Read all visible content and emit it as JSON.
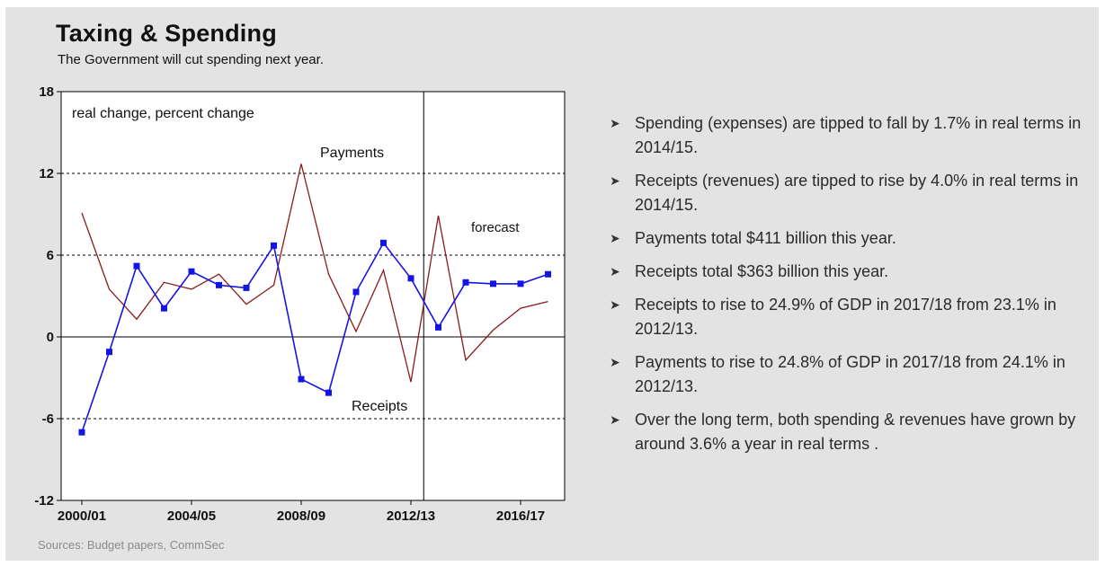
{
  "title": "Taxing & Spending",
  "subtitle": "The Government will cut spending next year.",
  "source": "Sources: Budget papers, CommSec",
  "bullets": [
    "Spending (expenses) are tipped to fall by 1.7% in real terms in 2014/15.",
    "Receipts (revenues) are tipped to rise by 4.0% in real terms in 2014/15.",
    "Payments total $411 billion this year.",
    "Receipts total $363 billion this year.",
    "Receipts to rise to 24.9% of GDP in 2017/18 from 23.1% in 2012/13.",
    "Payments to rise to 24.8% of GDP in 2017/18 from 24.1% in 2012/13.",
    "Over the long term, both spending & revenues have grown by around 3.6% a year in real terms ."
  ],
  "chart_data": {
    "type": "line",
    "ylabel": "real change, percent change",
    "ylim": [
      -12,
      18
    ],
    "yticks": [
      18,
      12,
      6,
      0,
      -6,
      -12
    ],
    "grid": "dashed horizontal",
    "x_tick_labels": [
      "2000/01",
      "2004/05",
      "2008/09",
      "2012/13",
      "2016/17"
    ],
    "x": [
      "2000/01",
      "2001/02",
      "2002/03",
      "2003/04",
      "2004/05",
      "2005/06",
      "2006/07",
      "2007/08",
      "2008/09",
      "2009/10",
      "2010/11",
      "2011/12",
      "2012/13",
      "2013/14",
      "2014/15",
      "2015/16",
      "2016/17",
      "2017/18"
    ],
    "forecast_label": "forecast",
    "forecast_start": "2013/14",
    "series": [
      {
        "name": "Payments",
        "color": "#8b1a1a",
        "marker": "none",
        "values": [
          9.1,
          3.5,
          1.3,
          4.0,
          3.5,
          4.6,
          2.4,
          3.8,
          12.7,
          4.6,
          0.4,
          4.9,
          -3.3,
          8.9,
          -1.7,
          0.5,
          2.1,
          2.6
        ]
      },
      {
        "name": "Receipts",
        "color": "#1414e6",
        "marker": "square",
        "values": [
          -7.0,
          -1.1,
          5.2,
          2.1,
          4.8,
          3.8,
          3.6,
          6.7,
          -3.1,
          -4.1,
          3.3,
          6.9,
          4.3,
          0.7,
          4.0,
          3.9,
          3.9,
          4.6
        ]
      }
    ]
  }
}
